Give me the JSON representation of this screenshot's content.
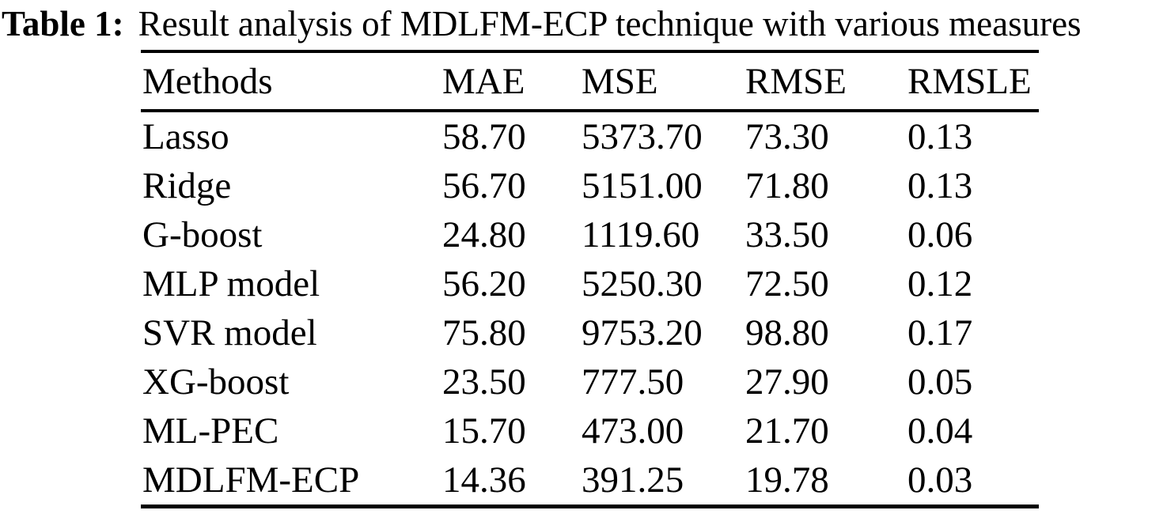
{
  "caption": {
    "label": "Table 1:",
    "text": "Result analysis of MDLFM-ECP technique with various measures"
  },
  "table": {
    "columns": [
      "Methods",
      "MAE",
      "MSE",
      "RMSE",
      "RMSLE"
    ],
    "rows": [
      [
        "Lasso",
        "58.70",
        "5373.70",
        "73.30",
        "0.13"
      ],
      [
        "Ridge",
        "56.70",
        "5151.00",
        "71.80",
        "0.13"
      ],
      [
        "G-boost",
        "24.80",
        "1119.60",
        "33.50",
        "0.06"
      ],
      [
        "MLP model",
        "56.20",
        "5250.30",
        "72.50",
        "0.12"
      ],
      [
        "SVR model",
        "75.80",
        "9753.20",
        "98.80",
        "0.17"
      ],
      [
        "XG-boost",
        "23.50",
        "777.50",
        "27.90",
        "0.05"
      ],
      [
        "ML-PEC",
        "15.70",
        "473.00",
        "21.70",
        "0.04"
      ],
      [
        "MDLFM-ECP",
        "14.36",
        "391.25",
        "19.78",
        "0.03"
      ]
    ]
  },
  "chart_data": {
    "type": "table",
    "title": "Table 1: Result analysis of MDLFM-ECP technique with various measures",
    "columns": [
      "Methods",
      "MAE",
      "MSE",
      "RMSE",
      "RMSLE"
    ],
    "rows": [
      {
        "method": "Lasso",
        "MAE": 58.7,
        "MSE": 5373.7,
        "RMSE": 73.3,
        "RMSLE": 0.13
      },
      {
        "method": "Ridge",
        "MAE": 56.7,
        "MSE": 5151.0,
        "RMSE": 71.8,
        "RMSLE": 0.13
      },
      {
        "method": "G-boost",
        "MAE": 24.8,
        "MSE": 1119.6,
        "RMSE": 33.5,
        "RMSLE": 0.06
      },
      {
        "method": "MLP model",
        "MAE": 56.2,
        "MSE": 5250.3,
        "RMSE": 72.5,
        "RMSLE": 0.12
      },
      {
        "method": "SVR model",
        "MAE": 75.8,
        "MSE": 9753.2,
        "RMSE": 98.8,
        "RMSLE": 0.17
      },
      {
        "method": "XG-boost",
        "MAE": 23.5,
        "MSE": 777.5,
        "RMSE": 27.9,
        "RMSLE": 0.05
      },
      {
        "method": "ML-PEC",
        "MAE": 15.7,
        "MSE": 473.0,
        "RMSE": 21.7,
        "RMSLE": 0.04
      },
      {
        "method": "MDLFM-ECP",
        "MAE": 14.36,
        "MSE": 391.25,
        "RMSE": 19.78,
        "RMSLE": 0.03
      }
    ]
  },
  "colors": {
    "background": "#ffffff",
    "text": "#000000",
    "rule": "#000000"
  }
}
